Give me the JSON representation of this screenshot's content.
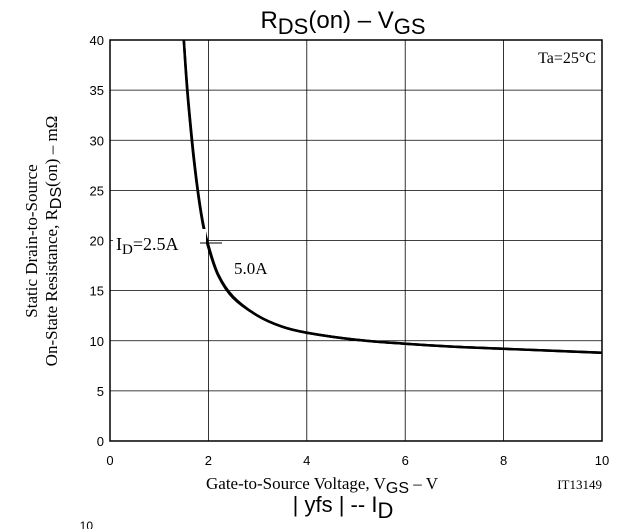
{
  "chart_data": {
    "type": "line",
    "title": {
      "main": "R",
      "main_sub": "DS",
      "main_rest": "(on)  –  V",
      "main_sub2": "GS"
    },
    "xlabel": {
      "pre": "Gate-to-Source Voltage, V",
      "sub": "GS",
      "post": "  –  V"
    },
    "ylabel": {
      "line1": "Static Drain-to-Source",
      "line2_pre": "On-State Resistance, R",
      "line2_sub": "DS",
      "line2_post": "(on)  –  mΩ"
    },
    "xlim": [
      0,
      10
    ],
    "ylim": [
      0,
      40
    ],
    "x_ticks": [
      "0",
      "2",
      "4",
      "6",
      "8",
      "10"
    ],
    "y_ticks": [
      "0",
      "5",
      "10",
      "15",
      "20",
      "25",
      "30",
      "35",
      "40"
    ],
    "grid": true,
    "condition": "Ta=25°C",
    "figure_id": "IT13149",
    "next_title": {
      "pre": "| yfs |  --  I",
      "sub": "D"
    },
    "partial_tick": "10",
    "series": [
      {
        "name": "I_D=2.5A",
        "label": {
          "pre": "I",
          "sub": "D",
          "post": "=2.5A"
        },
        "x": [
          1.5,
          1.55,
          1.6,
          1.7,
          1.8,
          1.9,
          2.0,
          2.2,
          2.5,
          3.0,
          3.5,
          4.0,
          5.0,
          6.0,
          7.0,
          8.0,
          9.0,
          10.0
        ],
        "y": [
          40,
          36.5,
          33.5,
          28.5,
          24.5,
          21.5,
          19.5,
          16.6,
          14.4,
          12.5,
          11.4,
          10.8,
          10.1,
          9.7,
          9.4,
          9.2,
          9.0,
          8.8
        ]
      },
      {
        "name": "5.0A",
        "label": {
          "pre": "5.0A",
          "sub": "",
          "post": ""
        },
        "x": [
          1.5,
          1.55,
          1.6,
          1.7,
          1.8,
          1.9,
          2.0,
          2.2,
          2.5,
          3.0,
          3.5,
          4.0,
          5.0,
          6.0,
          7.0,
          8.0,
          9.0,
          10.0
        ],
        "y": [
          40,
          36.2,
          33.2,
          28.2,
          24.3,
          21.3,
          19.3,
          16.5,
          14.3,
          12.5,
          11.4,
          10.8,
          10.1,
          9.7,
          9.4,
          9.2,
          9.0,
          8.8
        ]
      }
    ]
  }
}
